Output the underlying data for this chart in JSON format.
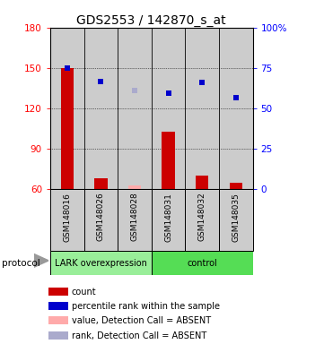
{
  "title": "GDS2553 / 142870_s_at",
  "samples": [
    "GSM148016",
    "GSM148026",
    "GSM148028",
    "GSM148031",
    "GSM148032",
    "GSM148035"
  ],
  "bar_values": [
    150,
    68,
    63,
    103,
    70,
    65
  ],
  "bar_colors": [
    "#cc0000",
    "#cc0000",
    "#ffaaaa",
    "#cc0000",
    "#cc0000",
    "#cc0000"
  ],
  "dot_values": [
    150,
    140,
    133,
    131,
    139,
    128
  ],
  "dot_colors": [
    "#0000cc",
    "#0000cc",
    "#aaaacc",
    "#0000cc",
    "#0000cc",
    "#0000cc"
  ],
  "ylim_left": [
    60,
    180
  ],
  "ylim_right": [
    0,
    100
  ],
  "yticks_left": [
    60,
    90,
    120,
    150,
    180
  ],
  "yticks_right": [
    0,
    25,
    50,
    75,
    100
  ],
  "ytick_labels_right": [
    "0",
    "25",
    "50",
    "75",
    "100%"
  ],
  "bar_bottom": 60,
  "groups": [
    {
      "label": "LARK overexpression",
      "n_samples": 3,
      "color": "#99ee99"
    },
    {
      "label": "control",
      "n_samples": 3,
      "color": "#55dd55"
    }
  ],
  "protocol_label": "protocol",
  "legend_items": [
    {
      "color": "#cc0000",
      "label": "count"
    },
    {
      "color": "#0000cc",
      "label": "percentile rank within the sample"
    },
    {
      "color": "#ffaaaa",
      "label": "value, Detection Call = ABSENT"
    },
    {
      "color": "#aaaacc",
      "label": "rank, Detection Call = ABSENT"
    }
  ],
  "background_color": "#ffffff",
  "sample_bg_color": "#cccccc",
  "title_fontsize": 10,
  "tick_fontsize": 7.5,
  "sample_fontsize": 6.5,
  "legend_fontsize": 7,
  "protocol_fontsize": 7.5
}
